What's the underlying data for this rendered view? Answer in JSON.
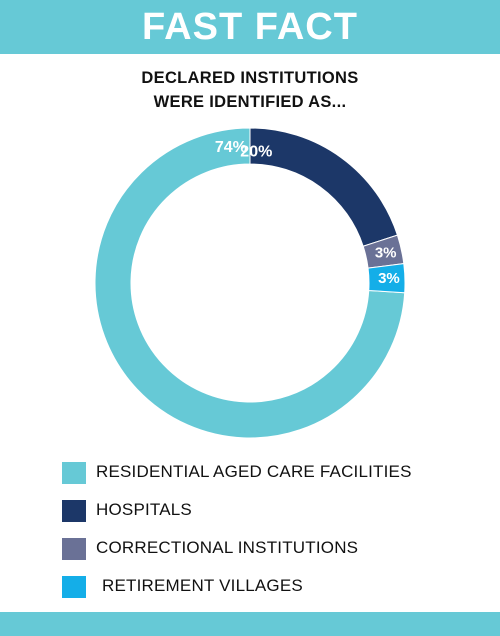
{
  "header": {
    "title": "FAST FACT"
  },
  "colors": {
    "header_bg": "#66c9d6",
    "footer_bg": "#66c9d6",
    "residential": "#66c9d6",
    "hospitals": "#1c3768",
    "correctional": "#6a7196",
    "retirement": "#14aee8"
  },
  "chart_data": {
    "type": "pie",
    "variant": "donut",
    "title_lines": [
      "DECLARED INSTITUTIONS",
      "WERE IDENTIFIED AS..."
    ],
    "legend_position": "bottom-left",
    "slices": [
      {
        "name": "RESIDENTIAL AGED CARE FACILITIES",
        "value": 74,
        "label": "74%",
        "color": "#66c9d6"
      },
      {
        "name": "HOSPITALS",
        "value": 20,
        "label": "20%",
        "color": "#1c3768"
      },
      {
        "name": "CORRECTIONAL INSTITUTIONS",
        "value": 3,
        "label": "3%",
        "color": "#6a7196"
      },
      {
        "name": "RETIREMENT VILLAGES",
        "value": 3,
        "label": "3%",
        "color": "#14aee8"
      }
    ]
  }
}
